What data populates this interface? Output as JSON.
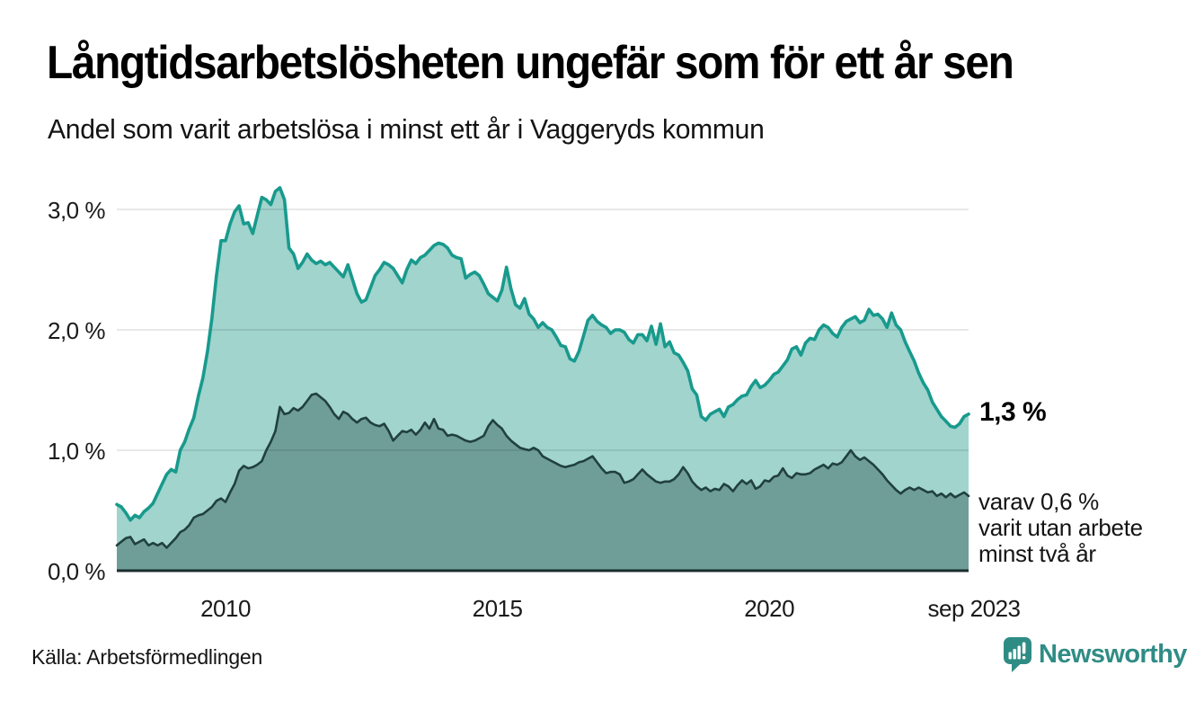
{
  "header": {
    "title": "Långtidsarbetslösheten ungefär som för ett år sen",
    "subtitle": "Andel som varit arbetslösa i minst ett år i Vaggeryds kommun"
  },
  "chart_data": {
    "type": "area",
    "title": "Långtidsarbetslösheten ungefär som för ett år sen",
    "subtitle": "Andel som varit arbetslösa i minst ett år i Vaggeryds kommun",
    "unit": "percent",
    "x_start": "2008-01",
    "x_end": "2023-09",
    "x_months_per_point": 1,
    "x_tick_labels": [
      "2010",
      "2015",
      "2020",
      "sep 2023"
    ],
    "x_tick_years": [
      2010,
      2015,
      2020,
      2023.6667
    ],
    "y_tick_values": [
      0,
      1,
      2,
      3
    ],
    "y_tick_labels": [
      "0,0 %",
      "1,0 %",
      "2,0 %",
      "3,0 %"
    ],
    "y_gridline_values": [
      1,
      2,
      3
    ],
    "ylim": [
      0,
      3.3
    ],
    "grid": "horizontal",
    "legend_position": "none",
    "colors": {
      "upper_line": "#189a8d",
      "upper_fill": "#a0d4cd",
      "lower_line": "#21403d",
      "lower_fill": "#6f9e99",
      "baseline": "#1b2d2c",
      "gridline_overlay": "rgba(0,0,0,0.12)",
      "brand_teal": "#2f8c85"
    },
    "series": [
      {
        "name": "Andel arbetslösa minst ett år",
        "values": [
          0.55,
          0.53,
          0.48,
          0.42,
          0.46,
          0.44,
          0.49,
          0.52,
          0.56,
          0.64,
          0.72,
          0.8,
          0.84,
          0.82,
          1.0,
          1.07,
          1.18,
          1.27,
          1.45,
          1.6,
          1.82,
          2.1,
          2.45,
          2.74,
          2.74,
          2.88,
          2.98,
          3.03,
          2.88,
          2.89,
          2.8,
          2.95,
          3.1,
          3.08,
          3.04,
          3.15,
          3.18,
          3.08,
          2.68,
          2.63,
          2.51,
          2.56,
          2.63,
          2.58,
          2.55,
          2.57,
          2.54,
          2.56,
          2.52,
          2.48,
          2.44,
          2.54,
          2.42,
          2.3,
          2.23,
          2.25,
          2.35,
          2.45,
          2.5,
          2.56,
          2.54,
          2.51,
          2.45,
          2.39,
          2.5,
          2.58,
          2.55,
          2.6,
          2.62,
          2.66,
          2.7,
          2.72,
          2.71,
          2.68,
          2.62,
          2.6,
          2.59,
          2.43,
          2.46,
          2.48,
          2.45,
          2.38,
          2.3,
          2.27,
          2.24,
          2.33,
          2.52,
          2.34,
          2.21,
          2.18,
          2.26,
          2.13,
          2.09,
          2.02,
          2.06,
          2.02,
          2.0,
          1.94,
          1.87,
          1.86,
          1.76,
          1.74,
          1.82,
          1.95,
          2.08,
          2.12,
          2.07,
          2.04,
          2.02,
          1.97,
          2.0,
          2.0,
          1.98,
          1.92,
          1.89,
          1.96,
          1.96,
          1.91,
          2.03,
          1.88,
          2.05,
          1.86,
          1.9,
          1.81,
          1.79,
          1.73,
          1.66,
          1.51,
          1.46,
          1.28,
          1.25,
          1.3,
          1.32,
          1.34,
          1.28,
          1.36,
          1.38,
          1.42,
          1.45,
          1.46,
          1.53,
          1.58,
          1.52,
          1.54,
          1.58,
          1.63,
          1.65,
          1.7,
          1.75,
          1.84,
          1.86,
          1.79,
          1.89,
          1.93,
          1.92,
          2.0,
          2.04,
          2.02,
          1.97,
          1.94,
          2.02,
          2.07,
          2.09,
          2.11,
          2.06,
          2.08,
          2.17,
          2.12,
          2.13,
          2.09,
          2.02,
          2.14,
          2.04,
          2.0,
          1.9,
          1.82,
          1.74,
          1.64,
          1.56,
          1.5,
          1.4,
          1.34,
          1.28,
          1.24,
          1.2,
          1.19,
          1.22,
          1.28,
          1.3
        ]
      },
      {
        "name": "varav utan arbete minst två år",
        "values": [
          0.21,
          0.24,
          0.27,
          0.28,
          0.22,
          0.24,
          0.26,
          0.21,
          0.23,
          0.21,
          0.23,
          0.19,
          0.23,
          0.27,
          0.32,
          0.34,
          0.38,
          0.44,
          0.46,
          0.47,
          0.5,
          0.53,
          0.58,
          0.6,
          0.57,
          0.65,
          0.72,
          0.83,
          0.87,
          0.85,
          0.86,
          0.88,
          0.91,
          1.0,
          1.07,
          1.16,
          1.36,
          1.3,
          1.31,
          1.35,
          1.33,
          1.36,
          1.41,
          1.46,
          1.47,
          1.44,
          1.41,
          1.36,
          1.3,
          1.26,
          1.32,
          1.3,
          1.26,
          1.23,
          1.26,
          1.27,
          1.23,
          1.21,
          1.2,
          1.22,
          1.16,
          1.08,
          1.12,
          1.16,
          1.15,
          1.17,
          1.13,
          1.17,
          1.23,
          1.18,
          1.26,
          1.18,
          1.17,
          1.12,
          1.13,
          1.12,
          1.1,
          1.08,
          1.07,
          1.08,
          1.1,
          1.12,
          1.2,
          1.25,
          1.21,
          1.18,
          1.12,
          1.08,
          1.05,
          1.02,
          1.01,
          1.0,
          1.02,
          1.0,
          0.95,
          0.93,
          0.91,
          0.89,
          0.87,
          0.86,
          0.87,
          0.88,
          0.9,
          0.91,
          0.93,
          0.95,
          0.9,
          0.85,
          0.81,
          0.82,
          0.82,
          0.8,
          0.73,
          0.74,
          0.76,
          0.8,
          0.84,
          0.8,
          0.77,
          0.74,
          0.73,
          0.74,
          0.74,
          0.76,
          0.8,
          0.86,
          0.81,
          0.74,
          0.7,
          0.67,
          0.69,
          0.66,
          0.68,
          0.67,
          0.72,
          0.7,
          0.66,
          0.71,
          0.75,
          0.72,
          0.75,
          0.68,
          0.7,
          0.75,
          0.74,
          0.78,
          0.79,
          0.85,
          0.79,
          0.77,
          0.81,
          0.8,
          0.8,
          0.81,
          0.84,
          0.86,
          0.88,
          0.85,
          0.89,
          0.88,
          0.9,
          0.95,
          1.0,
          0.95,
          0.92,
          0.94,
          0.91,
          0.88,
          0.84,
          0.8,
          0.75,
          0.71,
          0.67,
          0.64,
          0.67,
          0.69,
          0.67,
          0.69,
          0.67,
          0.65,
          0.66,
          0.62,
          0.64,
          0.61,
          0.64,
          0.61,
          0.63,
          0.65,
          0.62
        ]
      }
    ],
    "annotations": {
      "latest_value_label": "1,3 %",
      "secondary_label_lines": [
        "varav 0,6 %",
        "varit utan arbete",
        "minst två år"
      ]
    }
  },
  "footer": {
    "source": "Källa: Arbetsförmedlingen",
    "brand_name": "Newsworthy"
  }
}
